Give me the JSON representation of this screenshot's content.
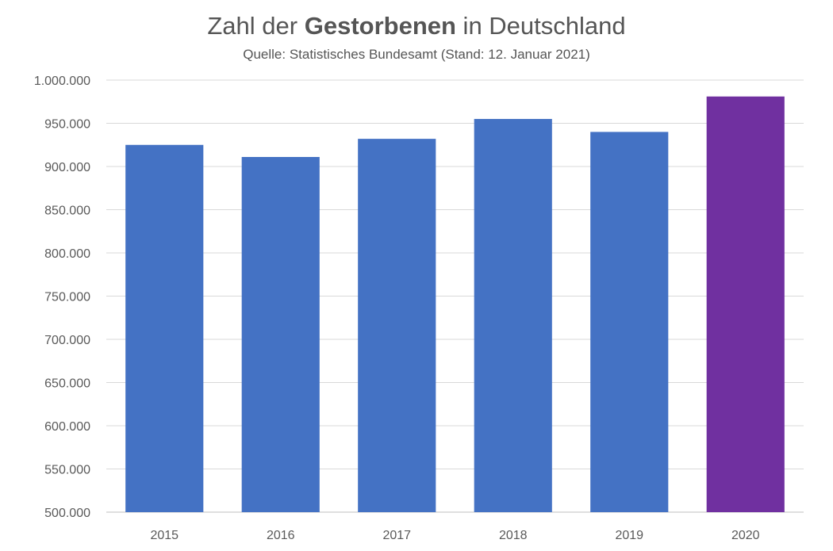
{
  "chart_data": {
    "type": "bar",
    "title_parts": [
      "Zahl der ",
      "Gestorbenen",
      " in Deutschland"
    ],
    "subtitle": "Quelle: Statistisches Bundesamt (Stand: 12. Januar 2021)",
    "categories": [
      "2015",
      "2016",
      "2017",
      "2018",
      "2019",
      "2020"
    ],
    "values": [
      925000,
      911000,
      932000,
      955000,
      940000,
      981000
    ],
    "bar_colors": [
      "#4472C4",
      "#4472C4",
      "#4472C4",
      "#4472C4",
      "#4472C4",
      "#7030A0"
    ],
    "ylim": [
      500000,
      1000000
    ],
    "yticks": [
      500000,
      550000,
      600000,
      650000,
      700000,
      750000,
      800000,
      850000,
      900000,
      950000,
      1000000
    ],
    "ytick_labels": [
      "500.000",
      "550.000",
      "600.000",
      "650.000",
      "700.000",
      "750.000",
      "800.000",
      "850.000",
      "900.000",
      "950.000",
      "1.000.000"
    ],
    "grid": true,
    "xlabel": "",
    "ylabel": ""
  }
}
